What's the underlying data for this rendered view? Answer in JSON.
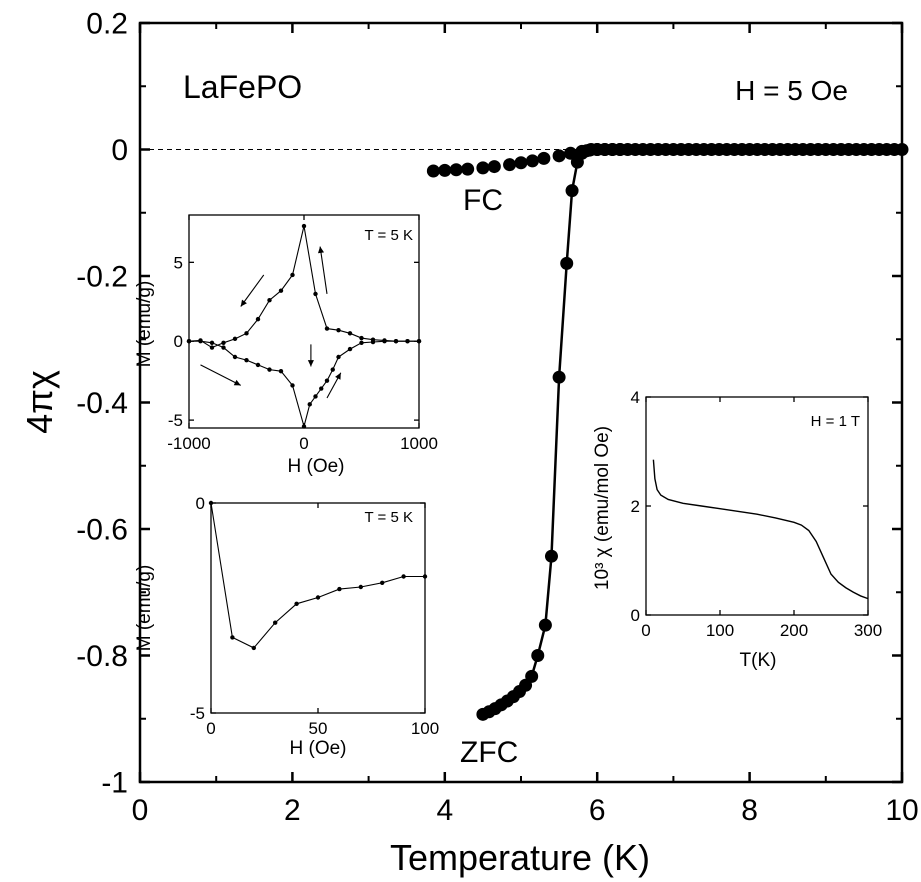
{
  "chart_data": [
    {
      "type": "scatter",
      "role": "main",
      "xlabel": "Temperature (K)",
      "ylabel": "4πχ",
      "xlim": [
        0,
        10
      ],
      "ylim": [
        -1,
        0.2
      ],
      "xticks": [
        0,
        2,
        4,
        6,
        8,
        10
      ],
      "yticks": [
        0.2,
        0,
        -0.2,
        -0.4,
        -0.6,
        -0.8,
        -1
      ],
      "ytick_labels": [
        "0.2",
        "0",
        "-0.2",
        "-0.4",
        "-0.6",
        "-0.8",
        "-1"
      ],
      "reference_line_y": 0,
      "annotations": {
        "sample": "LaFePO",
        "field": "H = 5 Oe",
        "fc_label": "FC",
        "zfc_label": "ZFC"
      },
      "series": [
        {
          "name": "FC",
          "x": [
            3.85,
            4.0,
            4.15,
            4.3,
            4.5,
            4.65,
            4.85,
            5.0,
            5.15,
            5.3,
            5.5,
            5.65,
            5.8,
            5.9,
            6.0,
            6.1,
            6.2,
            6.3,
            6.4,
            6.5,
            6.6,
            6.7,
            6.8,
            6.9,
            7.0,
            7.1,
            7.2,
            7.3,
            7.4,
            7.5,
            7.6,
            7.7,
            7.8,
            7.9,
            8.0,
            8.1,
            8.2,
            8.3,
            8.4,
            8.5,
            8.6,
            8.7,
            8.8,
            8.9,
            9.0,
            9.1,
            9.2,
            9.3,
            9.4,
            9.5,
            9.6,
            9.7,
            9.8,
            9.9,
            10.0
          ],
          "y": [
            -0.034,
            -0.033,
            -0.032,
            -0.031,
            -0.029,
            -0.027,
            -0.024,
            -0.021,
            -0.018,
            -0.014,
            -0.01,
            -0.006,
            -0.003,
            -0.001,
            0.0,
            0.0,
            0.0,
            0.0,
            0.0,
            0.0,
            0.0,
            0.0,
            0.0,
            0.0,
            0.0,
            0.0,
            0.0,
            0.0,
            0.0,
            0.0,
            0.0,
            0.0,
            0.0,
            0.0,
            0.0,
            0.0,
            0.0,
            0.0,
            0.0,
            0.0,
            0.0,
            0.0,
            0.0,
            0.0,
            0.0,
            0.0,
            0.0,
            0.0,
            0.0,
            0.0,
            0.0,
            0.0,
            0.0,
            0.0,
            0.0
          ]
        },
        {
          "name": "ZFC",
          "x": [
            4.5,
            4.58,
            4.66,
            4.74,
            4.82,
            4.9,
            4.98,
            5.06,
            5.14,
            5.22,
            5.32,
            5.4,
            5.5,
            5.6,
            5.67,
            5.74,
            5.8,
            5.86,
            5.92,
            6.0,
            6.1,
            6.2,
            6.3
          ],
          "y": [
            -0.893,
            -0.889,
            -0.884,
            -0.878,
            -0.872,
            -0.865,
            -0.857,
            -0.847,
            -0.833,
            -0.8,
            -0.752,
            -0.643,
            -0.36,
            -0.18,
            -0.065,
            -0.02,
            -0.006,
            -0.002,
            0.0,
            0.0,
            0.0,
            0.0,
            0.0
          ]
        }
      ]
    },
    {
      "type": "line",
      "role": "inset-hysteresis",
      "xlabel": "H (Oe)",
      "ylabel": "M (emu/g)",
      "xlim": [
        -1000,
        1000
      ],
      "ylim": [
        -5.5,
        8
      ],
      "xticks": [
        -1000,
        0,
        1000
      ],
      "yticks": [
        5,
        0,
        -5
      ],
      "annotation": "T = 5 K",
      "series": [
        {
          "name": "",
          "x": [
            1000,
            900,
            800,
            700,
            600,
            500,
            400,
            300,
            200,
            100,
            0,
            -100,
            -200,
            -300,
            -400,
            -500,
            -600,
            -700,
            -800,
            -900,
            -1000
          ],
          "y": [
            0,
            0,
            0,
            0.05,
            0.1,
            0.2,
            0.5,
            0.7,
            0.8,
            3.0,
            7.3,
            4.2,
            3.2,
            2.6,
            1.4,
            0.5,
            0.15,
            -0.1,
            -0.4,
            0.05,
            0.0
          ]
        },
        {
          "name": "",
          "x": [
            -1000,
            -900,
            -800,
            -700,
            -600,
            -500,
            -400,
            -300,
            -200,
            -100,
            0,
            50,
            100,
            150,
            200,
            250,
            300,
            400,
            500,
            600,
            700,
            800,
            900,
            1000
          ],
          "y": [
            0,
            0,
            -0.1,
            -0.4,
            -1.0,
            -1.2,
            -1.5,
            -1.8,
            -1.9,
            -2.8,
            -5.4,
            -4.0,
            -3.5,
            -3.0,
            -2.5,
            -1.8,
            -1.0,
            -0.5,
            -0.1,
            -0.05,
            0.0,
            0.0,
            0.0,
            0.0
          ]
        }
      ]
    },
    {
      "type": "line",
      "role": "inset-initial-magnetization",
      "xlabel": "H (Oe)",
      "ylabel": "M (emu/g)",
      "xlim": [
        0,
        100
      ],
      "ylim": [
        -5,
        0
      ],
      "xticks": [
        0,
        50,
        100
      ],
      "yticks": [
        0,
        -5
      ],
      "annotation": "T = 5 K",
      "series": [
        {
          "name": "",
          "x": [
            0,
            10,
            20,
            30,
            40,
            50,
            60,
            70,
            80,
            90,
            100
          ],
          "y": [
            0,
            -3.2,
            -3.45,
            -2.85,
            -2.4,
            -2.25,
            -2.05,
            -2.0,
            -1.9,
            -1.75,
            -1.75
          ]
        }
      ]
    },
    {
      "type": "line",
      "role": "inset-susceptibility",
      "xlabel": "T(K)",
      "ylabel": "10³ χ (emu/mol Oe)",
      "xlim": [
        0,
        300
      ],
      "ylim": [
        0,
        4
      ],
      "xticks": [
        0,
        100,
        200,
        300
      ],
      "yticks": [
        0,
        2,
        4
      ],
      "annotation": "H = 1 T",
      "series": [
        {
          "name": "",
          "x": [
            10,
            12,
            15,
            20,
            30,
            50,
            75,
            100,
            125,
            150,
            175,
            200,
            210,
            220,
            230,
            240,
            250,
            260,
            270,
            280,
            290,
            300
          ],
          "y": [
            2.85,
            2.5,
            2.3,
            2.2,
            2.12,
            2.05,
            2.0,
            1.95,
            1.9,
            1.85,
            1.78,
            1.7,
            1.65,
            1.55,
            1.35,
            1.05,
            0.75,
            0.6,
            0.5,
            0.42,
            0.35,
            0.3
          ]
        }
      ]
    }
  ]
}
